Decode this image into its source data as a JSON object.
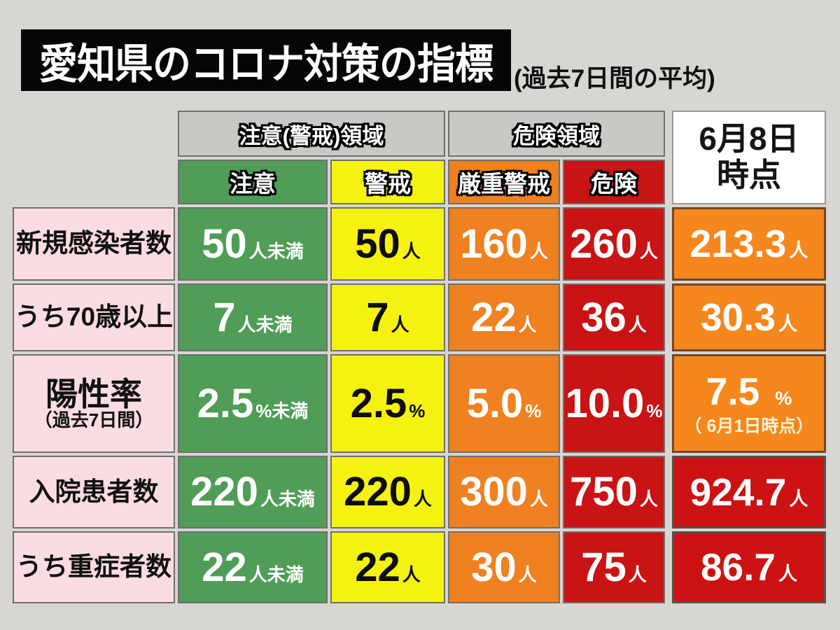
{
  "colors": {
    "caution_green": "#4f9d56",
    "warning_yellow": "#f5f212",
    "severe_orange": "#ef8120",
    "danger_red": "#c91314",
    "current_orange": "#f6871d",
    "current_red": "#cc1212",
    "label_pink": "#fbdce1",
    "zone_gray": "#c9c8c5",
    "title_black": "#060606"
  },
  "chart_data": {
    "type": "table",
    "title": "愛知県のコロナ対策の指標",
    "subtitle": "(過去7日間の平均)",
    "zone_headers": [
      {
        "label": "注意(警戒)領域"
      },
      {
        "label": "危険領域"
      }
    ],
    "level_headers": [
      {
        "label": "注意",
        "color": "#4f9d56"
      },
      {
        "label": "警戒",
        "color": "#f5f212"
      },
      {
        "label": "厳重警戒",
        "color": "#ef8120"
      },
      {
        "label": "危険",
        "color": "#c91314"
      }
    ],
    "date_header": {
      "line1": "6月8日",
      "line2": "時点"
    },
    "rows": [
      {
        "label": "新規感染者数",
        "thresholds": [
          {
            "value": "50",
            "unit": "人未満"
          },
          {
            "value": "50",
            "unit": "人"
          },
          {
            "value": "160",
            "unit": "人"
          },
          {
            "value": "260",
            "unit": "人"
          }
        ],
        "current": {
          "value": "213.3",
          "unit": "人",
          "level": "厳重警戒",
          "color": "#f6871d"
        }
      },
      {
        "label": "うち70歳以上",
        "thresholds": [
          {
            "value": "7",
            "unit": "人未満"
          },
          {
            "value": "7",
            "unit": "人"
          },
          {
            "value": "22",
            "unit": "人"
          },
          {
            "value": "36",
            "unit": "人"
          }
        ],
        "current": {
          "value": "30.3",
          "unit": "人",
          "level": "厳重警戒",
          "color": "#f6871d"
        }
      },
      {
        "label": "陽性率",
        "label_note": "（過去7日間）",
        "thresholds": [
          {
            "value": "2.5",
            "unit": "%未満"
          },
          {
            "value": "2.5",
            "unit": "%"
          },
          {
            "value": "5.0",
            "unit": "%"
          },
          {
            "value": "10.0",
            "unit": "%"
          }
        ],
        "current": {
          "value": "7.5",
          "unit": "%",
          "note": "（ 6月1日時点）",
          "level": "厳重警戒",
          "color": "#f6871d"
        }
      },
      {
        "label": "入院患者数",
        "thresholds": [
          {
            "value": "220",
            "unit": "人未満"
          },
          {
            "value": "220",
            "unit": "人"
          },
          {
            "value": "300",
            "unit": "人"
          },
          {
            "value": "750",
            "unit": "人"
          }
        ],
        "current": {
          "value": "924.7",
          "unit": "人",
          "level": "危険",
          "color": "#cc1212"
        }
      },
      {
        "label": "うち重症者数",
        "thresholds": [
          {
            "value": "22",
            "unit": "人未満"
          },
          {
            "value": "22",
            "unit": "人"
          },
          {
            "value": "30",
            "unit": "人"
          },
          {
            "value": "75",
            "unit": "人"
          }
        ],
        "current": {
          "value": "86.7",
          "unit": "人",
          "level": "危険",
          "color": "#cc1212"
        }
      }
    ]
  }
}
